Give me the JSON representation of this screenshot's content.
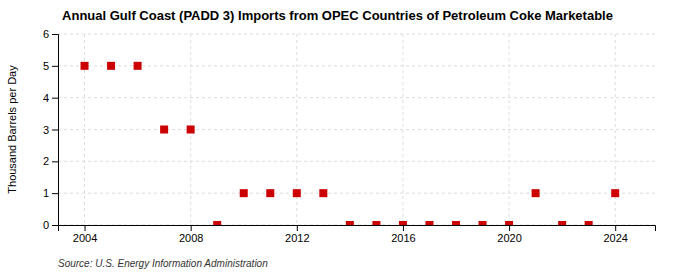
{
  "chart_data": {
    "type": "scatter",
    "title": "Annual Gulf Coast (PADD 3) Imports from OPEC Countries of Petroleum Coke Marketable",
    "ylabel": "Thousand Barrels per Day",
    "source": "Source: U.S. Energy Information Administration",
    "x": [
      2004,
      2005,
      2006,
      2007,
      2008,
      2009,
      2010,
      2011,
      2012,
      2013,
      2014,
      2015,
      2016,
      2017,
      2018,
      2019,
      2020,
      2021,
      2022,
      2023,
      2024
    ],
    "values": [
      5,
      5,
      5,
      3,
      3,
      0,
      1,
      1,
      1,
      1,
      0,
      0,
      0,
      0,
      0,
      0,
      0,
      1,
      0,
      0,
      1
    ],
    "color": "#cc0000",
    "marker": "square",
    "xlim": [
      2003.0,
      2025.5
    ],
    "xticks": [
      2004,
      2008,
      2012,
      2016,
      2020,
      2024
    ],
    "ylim": [
      0,
      6
    ],
    "yticks": [
      0,
      1,
      2,
      3,
      4,
      5,
      6
    ],
    "grid": true
  }
}
